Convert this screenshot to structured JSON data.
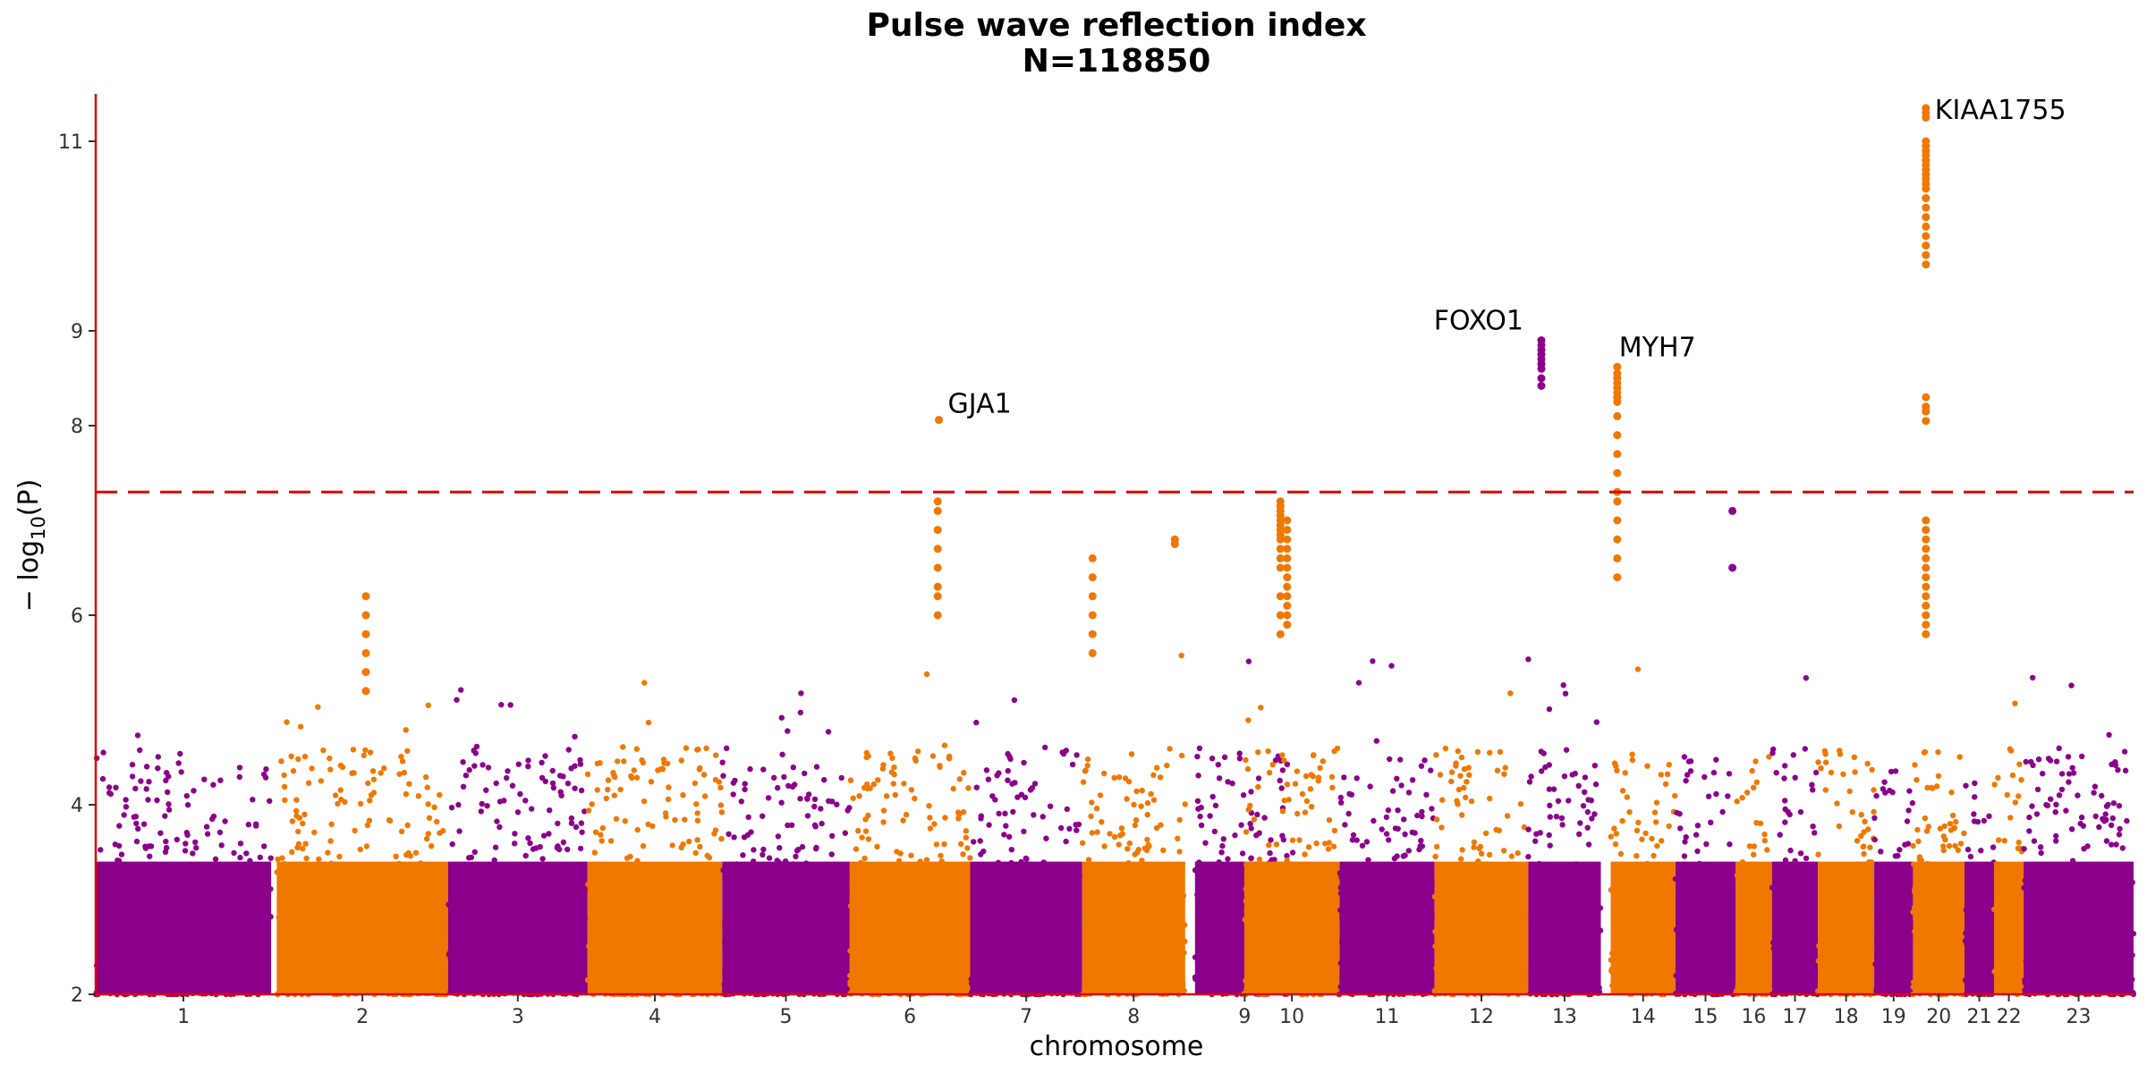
{
  "chart_data": {
    "type": "scatter",
    "title": "Pulse wave reflection index",
    "subtitle": "N=118850",
    "xlabel": "chromosome",
    "ylabel_prefix": "− log",
    "ylabel_sub": "10",
    "ylabel_suffix": "(P)",
    "ylim": [
      2,
      11.5
    ],
    "y_ticks": [
      2,
      4,
      6,
      8,
      9,
      11
    ],
    "y_tick_labels": [
      "2",
      "4",
      "6",
      "8",
      "9",
      "11"
    ],
    "threshold": 7.3,
    "grid": false,
    "colors": {
      "odd": "#8b008b",
      "even": "#f07800",
      "axis": "#e00000",
      "threshold": "#e00000"
    },
    "chromosomes": [
      {
        "label": "1",
        "start": 0.0,
        "size": 249
      },
      {
        "label": "2",
        "start": 257.0,
        "size": 243
      },
      {
        "label": "3",
        "start": 500.0,
        "size": 198
      },
      {
        "label": "4",
        "start": 698.0,
        "size": 191
      },
      {
        "label": "5",
        "start": 889.0,
        "size": 181
      },
      {
        "label": "6",
        "start": 1070.0,
        "size": 171
      },
      {
        "label": "7",
        "start": 1241.0,
        "size": 159
      },
      {
        "label": "8",
        "start": 1400.0,
        "size": 146
      },
      {
        "label": "9",
        "start": 1560.0,
        "size": 141
      },
      {
        "label": "10",
        "start": 1630.0,
        "size": 135
      },
      {
        "label": "11",
        "start": 1765.0,
        "size": 135
      },
      {
        "label": "12",
        "start": 1900.0,
        "size": 133
      },
      {
        "label": "13",
        "start": 2033.0,
        "size": 103
      },
      {
        "label": "14",
        "start": 2150.0,
        "size": 92
      },
      {
        "label": "15",
        "start": 2242.0,
        "size": 85
      },
      {
        "label": "16",
        "start": 2327.0,
        "size": 52
      },
      {
        "label": "17",
        "start": 2379.0,
        "size": 65
      },
      {
        "label": "18",
        "start": 2444.0,
        "size": 80
      },
      {
        "label": "19",
        "start": 2524.0,
        "size": 55
      },
      {
        "label": "20",
        "start": 2579.0,
        "size": 73
      },
      {
        "label": "21",
        "start": 2652.0,
        "size": 42
      },
      {
        "label": "22",
        "start": 2694.0,
        "size": 42
      },
      {
        "label": "23",
        "start": 2736.0,
        "size": 156
      }
    ],
    "highlight_points": [
      {
        "chr": "6",
        "pos": 0.74,
        "values": [
          8.06
        ]
      },
      {
        "chr": "10",
        "pos": 0.38,
        "values": [
          7.2,
          7.15,
          7.1,
          7.05,
          7.0,
          6.95,
          6.9,
          6.85,
          6.8,
          6.7,
          6.6,
          6.5,
          6.2,
          6.0,
          5.8
        ]
      },
      {
        "chr": "10",
        "pos": 0.45,
        "values": [
          7.0,
          6.9,
          6.8,
          6.7,
          6.6,
          6.5,
          6.4,
          6.3,
          6.2,
          6.1,
          6.0,
          5.9
        ]
      },
      {
        "chr": "13",
        "pos": 0.18,
        "values": [
          8.9,
          8.85,
          8.8,
          8.75,
          8.7,
          8.65,
          8.6,
          8.5,
          8.42
        ]
      },
      {
        "chr": "14",
        "pos": 0.1,
        "values": [
          8.62,
          8.55,
          8.5,
          8.45,
          8.4,
          8.35,
          8.3,
          8.25,
          8.1,
          7.9,
          7.7,
          7.5,
          7.3,
          7.2,
          7.0,
          6.8,
          6.6,
          6.4
        ]
      },
      {
        "chr": "20",
        "pos": 0.25,
        "values": [
          11.35,
          11.3,
          11.25,
          11.0,
          10.95,
          10.9,
          10.85,
          10.8,
          10.75,
          10.7,
          10.65,
          10.6,
          10.55,
          10.5,
          10.4,
          10.3,
          10.2,
          10.1,
          10.0,
          9.9,
          9.8,
          9.7,
          8.3,
          8.2,
          8.15,
          8.05,
          7.0,
          6.9,
          6.8,
          6.7,
          6.6,
          6.5,
          6.4,
          6.3,
          6.2,
          6.1,
          6.0,
          5.9,
          5.8
        ]
      },
      {
        "chr": "6",
        "pos": 0.73,
        "values": [
          7.2,
          7.1,
          6.9,
          6.7,
          6.5,
          6.3,
          6.2,
          6.0
        ]
      },
      {
        "chr": "8",
        "pos": 0.1,
        "values": [
          6.6,
          6.4,
          6.2,
          6.0,
          5.8,
          5.6
        ]
      },
      {
        "chr": "8",
        "pos": 0.9,
        "values": [
          6.8,
          6.75
        ]
      },
      {
        "chr": "2",
        "pos": 0.52,
        "values": [
          6.2,
          6.0,
          5.8,
          5.6,
          5.4,
          5.2
        ]
      },
      {
        "chr": "15",
        "pos": 0.95,
        "values": [
          7.1,
          6.5
        ]
      }
    ],
    "annotations": [
      {
        "text": "GJA1",
        "chr": "6",
        "pos": 0.74,
        "y": 8.06,
        "anchor": "start",
        "dx": 10,
        "dy": -8
      },
      {
        "text": "FOXO1",
        "chr": "13",
        "pos": 0.18,
        "y": 8.9,
        "anchor": "end",
        "dx": -20,
        "dy": -12
      },
      {
        "text": "MYH7",
        "chr": "14",
        "pos": 0.1,
        "y": 8.62,
        "anchor": "start",
        "dx": 2,
        "dy": -12
      },
      {
        "text": "KIAA1755",
        "chr": "20",
        "pos": 0.25,
        "y": 11.35,
        "anchor": "start",
        "dx": 10,
        "dy": 12
      }
    ]
  }
}
